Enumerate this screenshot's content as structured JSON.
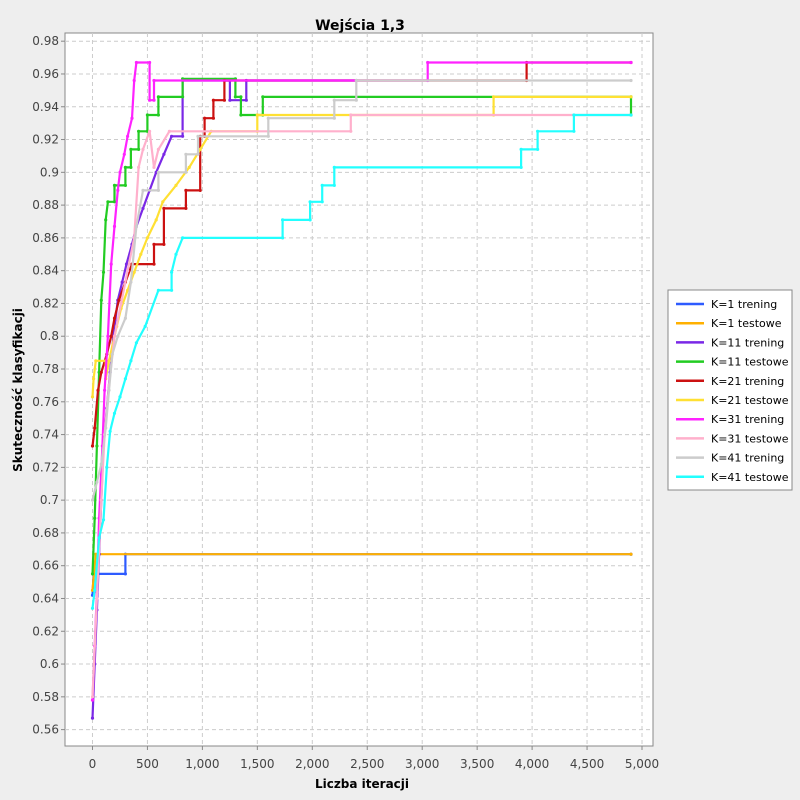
{
  "chart_data": {
    "type": "line",
    "title": "Wejścia 1,3",
    "xlabel": "Liczba iteracji",
    "ylabel": "Skuteczność klasyfikacji",
    "xlim": [
      -250,
      5100
    ],
    "ylim": [
      0.55,
      0.985
    ],
    "xticks": [
      0,
      500,
      1000,
      1500,
      2000,
      2500,
      3000,
      3500,
      4000,
      4500,
      5000
    ],
    "xtick_labels": [
      "0",
      "500",
      "1,000",
      "1,500",
      "2,000",
      "2,500",
      "3,000",
      "3,500",
      "4,000",
      "4,500",
      "5,000"
    ],
    "yticks": [
      0.56,
      0.58,
      0.6,
      0.62,
      0.64,
      0.66,
      0.68,
      0.7,
      0.72,
      0.74,
      0.76,
      0.78,
      0.8,
      0.82,
      0.84,
      0.86,
      0.88,
      0.9,
      0.92,
      0.94,
      0.96,
      0.98
    ],
    "ytick_labels": [
      "0.56",
      "0.58",
      "0.6",
      "0.62",
      "0.64",
      "0.66",
      "0.68",
      "0.7",
      "0.72",
      "0.74",
      "0.76",
      "0.78",
      "0.8",
      "0.82",
      "0.84",
      "0.86",
      "0.88",
      "0.9",
      "0.92",
      "0.94",
      "0.96",
      "0.98"
    ],
    "grid": true,
    "legend_position": "right",
    "series": [
      {
        "name": "K=1 trening",
        "color": "#2e5bff",
        "points": [
          [
            0,
            0.642
          ],
          [
            10,
            0.655
          ],
          [
            300,
            0.655
          ],
          [
            300,
            0.667
          ],
          [
            4900,
            0.667
          ]
        ]
      },
      {
        "name": "K=1 testowe",
        "color": "#ffb000",
        "points": [
          [
            0,
            0.645
          ],
          [
            30,
            0.667
          ],
          [
            4900,
            0.667
          ]
        ]
      },
      {
        "name": "K=11 trening",
        "color": "#7a28e6",
        "points": [
          [
            0,
            0.567
          ],
          [
            20,
            0.6
          ],
          [
            40,
            0.633
          ],
          [
            60,
            0.667
          ],
          [
            80,
            0.7
          ],
          [
            100,
            0.733
          ],
          [
            130,
            0.756
          ],
          [
            160,
            0.778
          ],
          [
            190,
            0.8
          ],
          [
            230,
            0.822
          ],
          [
            270,
            0.833
          ],
          [
            310,
            0.844
          ],
          [
            360,
            0.856
          ],
          [
            400,
            0.867
          ],
          [
            460,
            0.878
          ],
          [
            520,
            0.889
          ],
          [
            580,
            0.9
          ],
          [
            650,
            0.911
          ],
          [
            720,
            0.922
          ],
          [
            820,
            0.922
          ],
          [
            820,
            0.956
          ],
          [
            1250,
            0.956
          ],
          [
            1250,
            0.944
          ],
          [
            1400,
            0.944
          ],
          [
            1400,
            0.956
          ],
          [
            2400,
            0.956
          ]
        ]
      },
      {
        "name": "K=11 testowe",
        "color": "#22cc22",
        "points": [
          [
            0,
            0.655
          ],
          [
            20,
            0.689
          ],
          [
            40,
            0.733
          ],
          [
            60,
            0.778
          ],
          [
            80,
            0.822
          ],
          [
            100,
            0.839
          ],
          [
            120,
            0.871
          ],
          [
            140,
            0.882
          ],
          [
            200,
            0.882
          ],
          [
            200,
            0.892
          ],
          [
            300,
            0.892
          ],
          [
            300,
            0.903
          ],
          [
            350,
            0.903
          ],
          [
            350,
            0.914
          ],
          [
            420,
            0.914
          ],
          [
            420,
            0.925
          ],
          [
            500,
            0.925
          ],
          [
            500,
            0.935
          ],
          [
            600,
            0.935
          ],
          [
            600,
            0.946
          ],
          [
            820,
            0.946
          ],
          [
            820,
            0.957
          ],
          [
            1300,
            0.957
          ],
          [
            1300,
            0.946
          ],
          [
            1350,
            0.946
          ],
          [
            1350,
            0.935
          ],
          [
            1550,
            0.935
          ],
          [
            1550,
            0.946
          ],
          [
            4900,
            0.946
          ],
          [
            4900,
            0.935
          ]
        ]
      },
      {
        "name": "K=21 trening",
        "color": "#cc1111",
        "points": [
          [
            0,
            0.733
          ],
          [
            20,
            0.744
          ],
          [
            50,
            0.767
          ],
          [
            80,
            0.778
          ],
          [
            130,
            0.789
          ],
          [
            170,
            0.8
          ],
          [
            200,
            0.811
          ],
          [
            240,
            0.822
          ],
          [
            300,
            0.833
          ],
          [
            360,
            0.844
          ],
          [
            560,
            0.844
          ],
          [
            560,
            0.856
          ],
          [
            650,
            0.856
          ],
          [
            650,
            0.878
          ],
          [
            850,
            0.878
          ],
          [
            850,
            0.889
          ],
          [
            980,
            0.889
          ],
          [
            980,
            0.922
          ],
          [
            1020,
            0.922
          ],
          [
            1020,
            0.933
          ],
          [
            1100,
            0.933
          ],
          [
            1100,
            0.944
          ],
          [
            1200,
            0.944
          ],
          [
            1200,
            0.956
          ],
          [
            3950,
            0.956
          ],
          [
            3950,
            0.967
          ],
          [
            4900,
            0.967
          ]
        ]
      },
      {
        "name": "K=21 testowe",
        "color": "#ffe033",
        "points": [
          [
            0,
            0.763
          ],
          [
            10,
            0.774
          ],
          [
            30,
            0.785
          ],
          [
            120,
            0.785
          ],
          [
            120,
            0.774
          ],
          [
            150,
            0.785
          ],
          [
            220,
            0.806
          ],
          [
            260,
            0.817
          ],
          [
            320,
            0.828
          ],
          [
            380,
            0.839
          ],
          [
            440,
            0.85
          ],
          [
            500,
            0.86
          ],
          [
            580,
            0.871
          ],
          [
            640,
            0.882
          ],
          [
            760,
            0.892
          ],
          [
            880,
            0.903
          ],
          [
            980,
            0.914
          ],
          [
            1080,
            0.925
          ],
          [
            1500,
            0.925
          ],
          [
            1500,
            0.935
          ],
          [
            3650,
            0.935
          ],
          [
            3650,
            0.946
          ],
          [
            4900,
            0.946
          ]
        ]
      },
      {
        "name": "K=31 trening",
        "color": "#ff22ff",
        "points": [
          [
            0,
            0.578
          ],
          [
            20,
            0.611
          ],
          [
            40,
            0.644
          ],
          [
            60,
            0.689
          ],
          [
            90,
            0.733
          ],
          [
            110,
            0.767
          ],
          [
            140,
            0.8
          ],
          [
            170,
            0.844
          ],
          [
            200,
            0.867
          ],
          [
            230,
            0.889
          ],
          [
            250,
            0.9
          ],
          [
            290,
            0.911
          ],
          [
            320,
            0.922
          ],
          [
            360,
            0.933
          ],
          [
            380,
            0.956
          ],
          [
            400,
            0.967
          ],
          [
            520,
            0.967
          ],
          [
            520,
            0.944
          ],
          [
            560,
            0.944
          ],
          [
            560,
            0.956
          ],
          [
            3050,
            0.956
          ],
          [
            3050,
            0.967
          ],
          [
            4900,
            0.967
          ]
        ]
      },
      {
        "name": "K=31 testowe",
        "color": "#ffb0cc",
        "points": [
          [
            0,
            0.58
          ],
          [
            40,
            0.64
          ],
          [
            80,
            0.7
          ],
          [
            110,
            0.74
          ],
          [
            150,
            0.77
          ],
          [
            200,
            0.8
          ],
          [
            260,
            0.82
          ],
          [
            320,
            0.84
          ],
          [
            380,
            0.86
          ],
          [
            420,
            0.903
          ],
          [
            460,
            0.914
          ],
          [
            520,
            0.925
          ],
          [
            560,
            0.903
          ],
          [
            600,
            0.914
          ],
          [
            700,
            0.925
          ],
          [
            2350,
            0.925
          ],
          [
            2350,
            0.935
          ],
          [
            4900,
            0.935
          ]
        ]
      },
      {
        "name": "K=41 trening",
        "color": "#cccccc",
        "points": [
          [
            0,
            0.7
          ],
          [
            40,
            0.711
          ],
          [
            80,
            0.722
          ],
          [
            120,
            0.744
          ],
          [
            150,
            0.767
          ],
          [
            180,
            0.789
          ],
          [
            230,
            0.8
          ],
          [
            300,
            0.811
          ],
          [
            350,
            0.833
          ],
          [
            400,
            0.867
          ],
          [
            460,
            0.889
          ],
          [
            600,
            0.889
          ],
          [
            600,
            0.9
          ],
          [
            850,
            0.9
          ],
          [
            850,
            0.911
          ],
          [
            960,
            0.911
          ],
          [
            960,
            0.922
          ],
          [
            1600,
            0.922
          ],
          [
            1600,
            0.933
          ],
          [
            2200,
            0.933
          ],
          [
            2200,
            0.944
          ],
          [
            2400,
            0.944
          ],
          [
            2400,
            0.956
          ],
          [
            4900,
            0.956
          ]
        ]
      },
      {
        "name": "K=41 testowe",
        "color": "#22ffff",
        "points": [
          [
            0,
            0.634
          ],
          [
            20,
            0.645
          ],
          [
            60,
            0.677
          ],
          [
            100,
            0.688
          ],
          [
            130,
            0.72
          ],
          [
            160,
            0.742
          ],
          [
            200,
            0.753
          ],
          [
            250,
            0.763
          ],
          [
            300,
            0.774
          ],
          [
            350,
            0.785
          ],
          [
            400,
            0.796
          ],
          [
            480,
            0.806
          ],
          [
            600,
            0.828
          ],
          [
            720,
            0.828
          ],
          [
            720,
            0.839
          ],
          [
            760,
            0.85
          ],
          [
            820,
            0.86
          ],
          [
            1730,
            0.86
          ],
          [
            1730,
            0.871
          ],
          [
            1980,
            0.871
          ],
          [
            1980,
            0.882
          ],
          [
            2090,
            0.882
          ],
          [
            2090,
            0.892
          ],
          [
            2200,
            0.892
          ],
          [
            2200,
            0.903
          ],
          [
            3900,
            0.903
          ],
          [
            3900,
            0.914
          ],
          [
            4050,
            0.914
          ],
          [
            4050,
            0.925
          ],
          [
            4380,
            0.925
          ],
          [
            4380,
            0.935
          ],
          [
            4900,
            0.935
          ]
        ]
      }
    ]
  }
}
